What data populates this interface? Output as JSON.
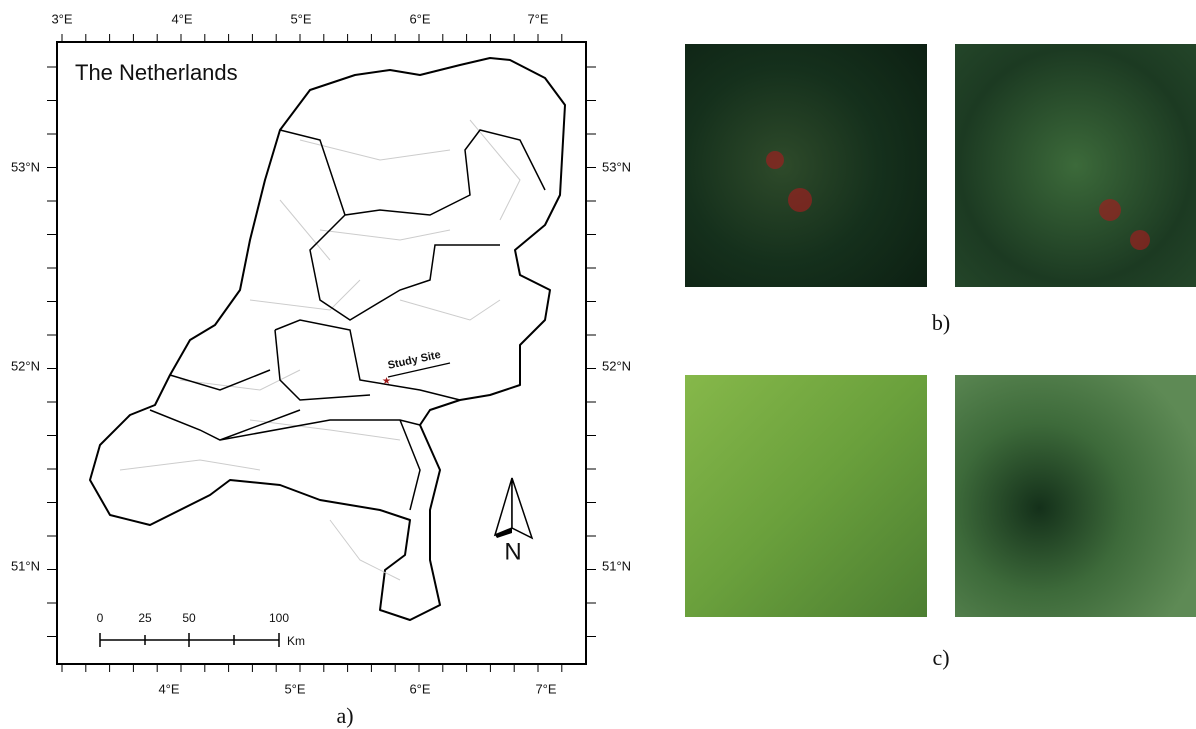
{
  "map": {
    "title": "The Netherlands",
    "top_labels": [
      "3°E",
      "4°E",
      "5°E",
      "6°E",
      "7°E"
    ],
    "bottom_labels": [
      "4°E",
      "5°E",
      "6°E",
      "7°E"
    ],
    "left_labels": [
      "53°N",
      "52°N",
      "51°N"
    ],
    "right_labels": [
      "53°N",
      "52°N",
      "51°N"
    ],
    "site_label": "Study Site",
    "scale": {
      "ticks": [
        "0",
        "25",
        "50",
        "100"
      ],
      "unit": "Km"
    },
    "north": "N"
  },
  "captions": [
    "a)",
    "b)",
    "c)"
  ]
}
